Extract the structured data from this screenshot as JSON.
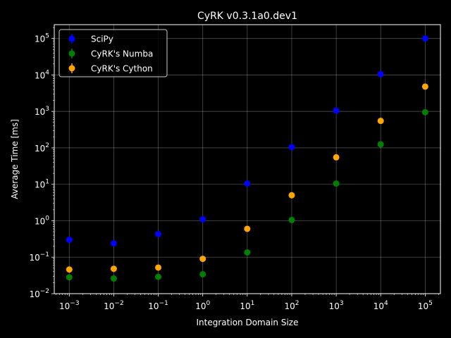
{
  "chart_data": {
    "type": "scatter",
    "title": "CyRK v0.3.1a0.dev1",
    "xlabel": "Integration Domain Size",
    "ylabel": "Average Time [ms]",
    "xscale": "log",
    "yscale": "log",
    "xlim": [
      0.00046,
      220000
    ],
    "ylim": [
      0.01,
      240000
    ],
    "grid": true,
    "legend_position": "top-left",
    "background": "#000000",
    "x": [
      0.001,
      0.01,
      0.1,
      1,
      10,
      100,
      1000,
      10000,
      100000
    ],
    "x_tick_labels": [
      {
        "base": "10",
        "exp": "−3"
      },
      {
        "base": "10",
        "exp": "−2"
      },
      {
        "base": "10",
        "exp": "−1"
      },
      {
        "base": "10",
        "exp": "0"
      },
      {
        "base": "10",
        "exp": "1"
      },
      {
        "base": "10",
        "exp": "2"
      },
      {
        "base": "10",
        "exp": "3"
      },
      {
        "base": "10",
        "exp": "4"
      },
      {
        "base": "10",
        "exp": "5"
      }
    ],
    "y_tick_values": [
      0.01,
      0.1,
      1,
      10,
      100,
      1000,
      10000,
      100000
    ],
    "y_tick_labels": [
      {
        "base": "10",
        "exp": "−2"
      },
      {
        "base": "10",
        "exp": "−1"
      },
      {
        "base": "10",
        "exp": "0"
      },
      {
        "base": "10",
        "exp": "1"
      },
      {
        "base": "10",
        "exp": "2"
      },
      {
        "base": "10",
        "exp": "3"
      },
      {
        "base": "10",
        "exp": "4"
      },
      {
        "base": "10",
        "exp": "5"
      }
    ],
    "series": [
      {
        "name": "SciPy",
        "color": "#0000ff",
        "values": [
          0.3,
          0.24,
          0.43,
          1.1,
          10.5,
          105,
          1050,
          10500,
          100000
        ]
      },
      {
        "name": "CyRK's Numba",
        "color": "#008000",
        "values": [
          0.028,
          0.026,
          0.029,
          0.034,
          0.135,
          1.05,
          10.5,
          125,
          950
        ]
      },
      {
        "name": "CyRK's Cython",
        "color": "#ffa500",
        "values": [
          0.046,
          0.048,
          0.052,
          0.09,
          0.6,
          5.0,
          55,
          550,
          4800
        ]
      }
    ]
  }
}
